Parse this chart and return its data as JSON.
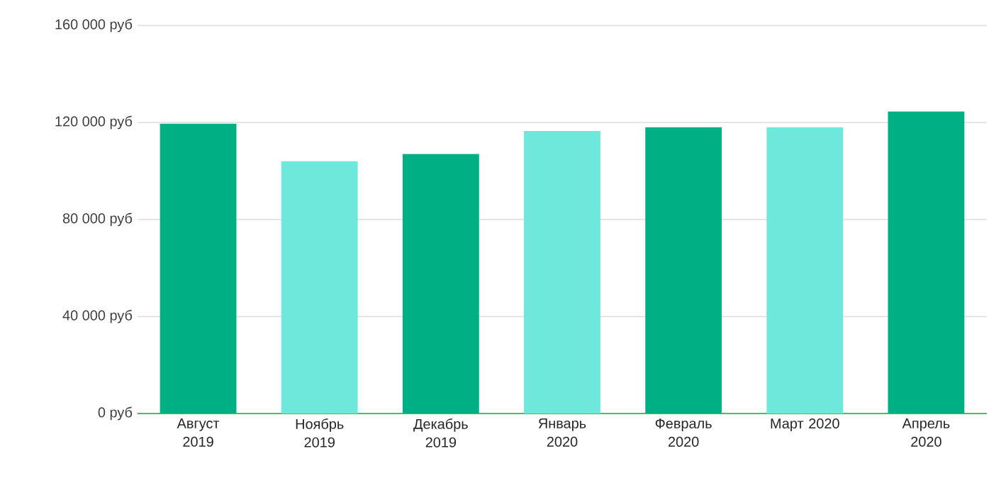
{
  "chart_data": {
    "type": "bar",
    "categories": [
      "Август 2019",
      "Ноябрь 2019",
      "Декабрь 2019",
      "Январь 2020",
      "Февраль 2020",
      "Март 2020",
      "Апрель 2020"
    ],
    "values": [
      119500,
      104000,
      107000,
      116500,
      118000,
      118000,
      124500
    ],
    "colors": [
      "#00af84",
      "#6ee8da",
      "#00af84",
      "#6ee8da",
      "#00af84",
      "#6ee8da",
      "#00af84"
    ],
    "ylim": [
      0,
      160000
    ],
    "yticks": [
      {
        "value": 0,
        "label": "0 руб"
      },
      {
        "value": 40000,
        "label": "40 000 руб"
      },
      {
        "value": 80000,
        "label": "80 000 руб"
      },
      {
        "value": 120000,
        "label": "120 000 руб"
      },
      {
        "value": 160000,
        "label": "160 000 руб"
      }
    ],
    "grid": "y"
  }
}
